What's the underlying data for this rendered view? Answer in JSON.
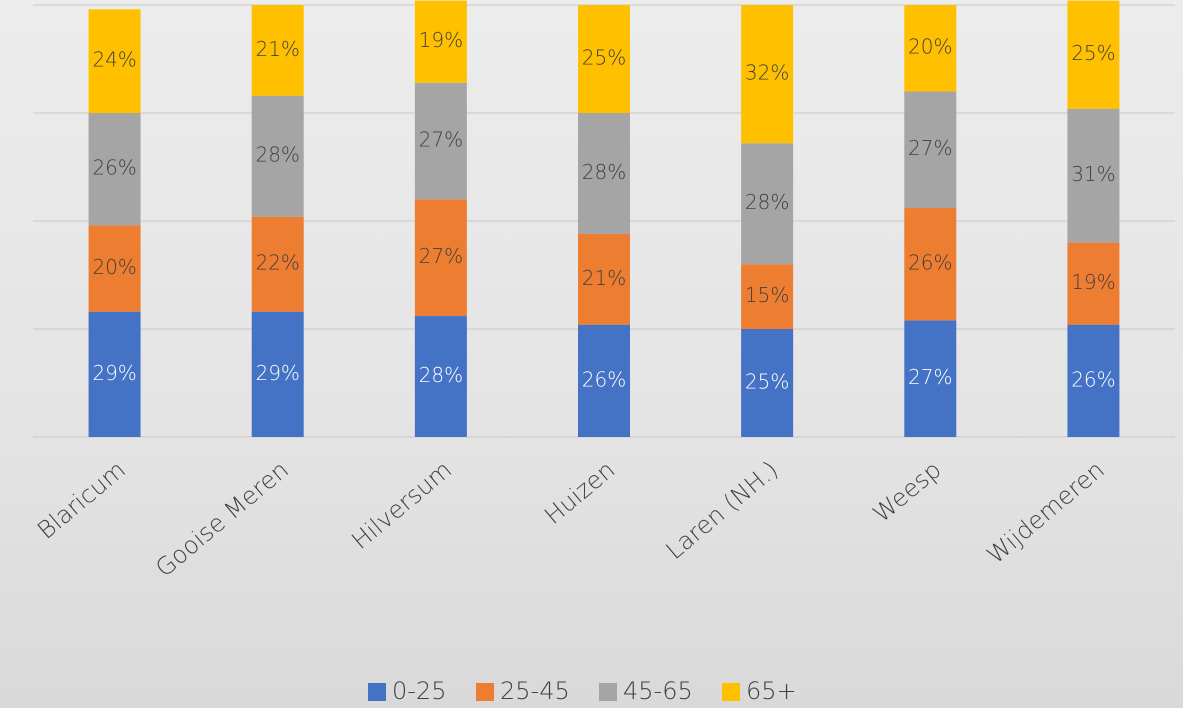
{
  "chart_data": {
    "type": "stacked_bar",
    "categories": [
      "Blaricum",
      "Gooise Meren",
      "Hilversum",
      "Huizen",
      "Laren (NH.)",
      "Weesp",
      "Wijdemeren"
    ],
    "series": [
      {
        "name": "0-25",
        "color": "#4472c4",
        "values": [
          29,
          29,
          28,
          26,
          25,
          27,
          26
        ],
        "value_labels": [
          "29%",
          "29%",
          "28%",
          "26%",
          "25%",
          "27%",
          "26%"
        ]
      },
      {
        "name": "25-45",
        "color": "#ed7d31",
        "values": [
          20,
          22,
          27,
          21,
          15,
          26,
          19
        ],
        "value_labels": [
          "20%",
          "22%",
          "27%",
          "21%",
          "15%",
          "26%",
          "19%"
        ]
      },
      {
        "name": "45-65",
        "color": "#a5a5a5",
        "values": [
          26,
          28,
          27,
          28,
          28,
          27,
          31
        ],
        "value_labels": [
          "26%",
          "28%",
          "27%",
          "28%",
          "28%",
          "27%",
          "31%"
        ]
      },
      {
        "name": "65+",
        "color": "#ffc000",
        "values": [
          24,
          21,
          19,
          25,
          32,
          20,
          25
        ],
        "value_labels": [
          "24%",
          "21%",
          "19%",
          "25%",
          "32%",
          "20%",
          "25%"
        ]
      }
    ],
    "ylim": [
      0,
      100
    ],
    "yticks": [
      0,
      25,
      50,
      75,
      100
    ],
    "grid": true,
    "legend": "bottom"
  }
}
